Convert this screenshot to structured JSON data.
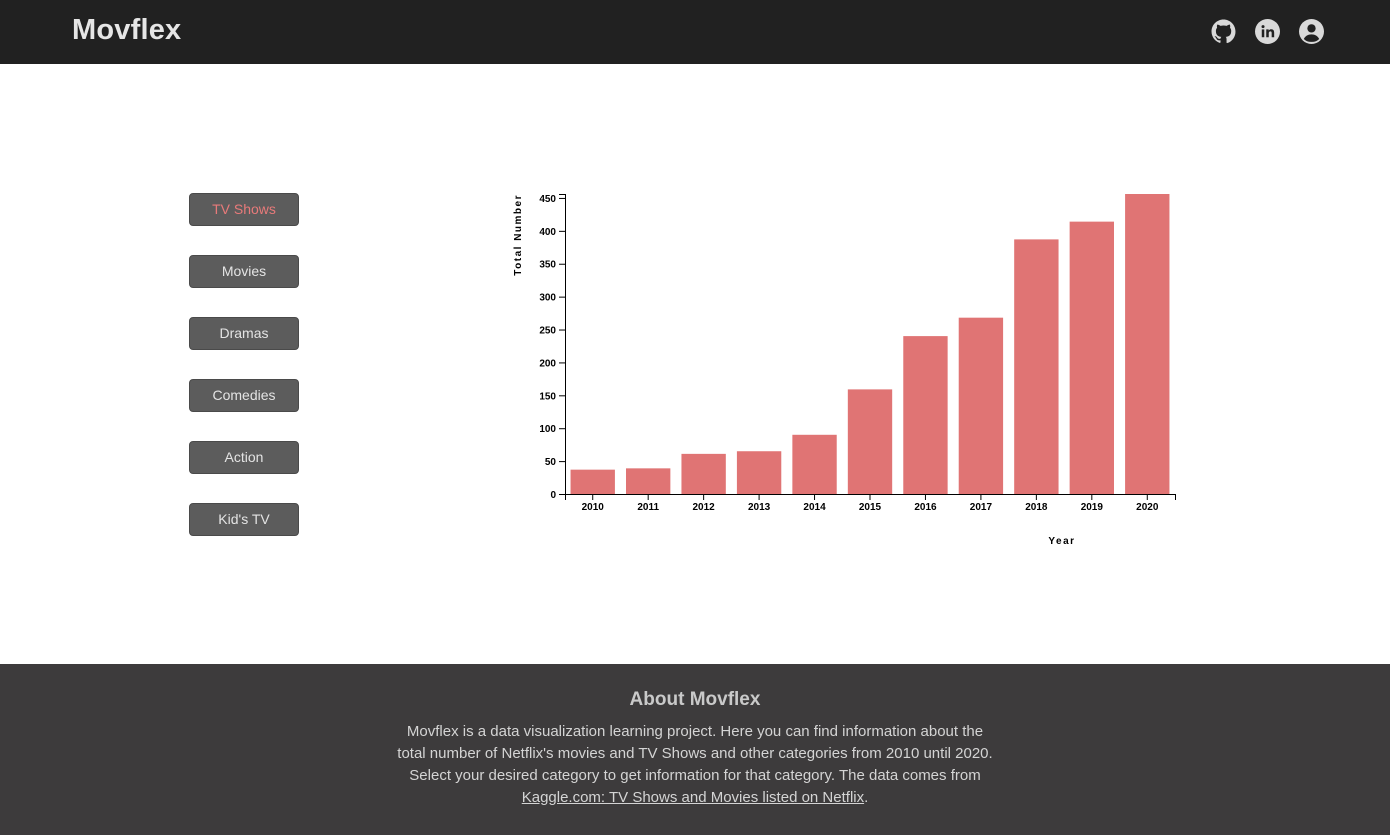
{
  "header": {
    "brand": "Movflex",
    "icons": [
      "github-icon",
      "linkedin-icon",
      "user-account-icon"
    ]
  },
  "sidebar": {
    "active_index": 0,
    "active_color": "#e87a7a",
    "items": [
      {
        "label": "TV Shows"
      },
      {
        "label": "Movies"
      },
      {
        "label": "Dramas"
      },
      {
        "label": "Comedies"
      },
      {
        "label": "Action"
      },
      {
        "label": "Kid's TV"
      }
    ]
  },
  "chart_data": {
    "type": "bar",
    "categories": [
      "2010",
      "2011",
      "2012",
      "2013",
      "2014",
      "2015",
      "2016",
      "2017",
      "2018",
      "2019",
      "2020"
    ],
    "values": [
      37,
      39,
      61,
      65,
      90,
      159,
      240,
      268,
      387,
      414,
      456
    ],
    "xlabel": "Year",
    "ylabel": "Total Number",
    "ylim": [
      0,
      456
    ],
    "yticks": [
      0,
      50,
      100,
      150,
      200,
      250,
      300,
      350,
      400,
      450
    ],
    "bar_color": "#e07474",
    "grid": false
  },
  "footer": {
    "title": "About Movflex",
    "text_before": "Movflex is a data visualization learning project. Here you can find information about the total number of Netflix's movies and TV Shows and other categories from 2010 until 2020. Select your desired category to get information for that category. The data comes from ",
    "link_text": "Kaggle.com: TV Shows and Movies listed on Netflix",
    "text_after": "."
  }
}
